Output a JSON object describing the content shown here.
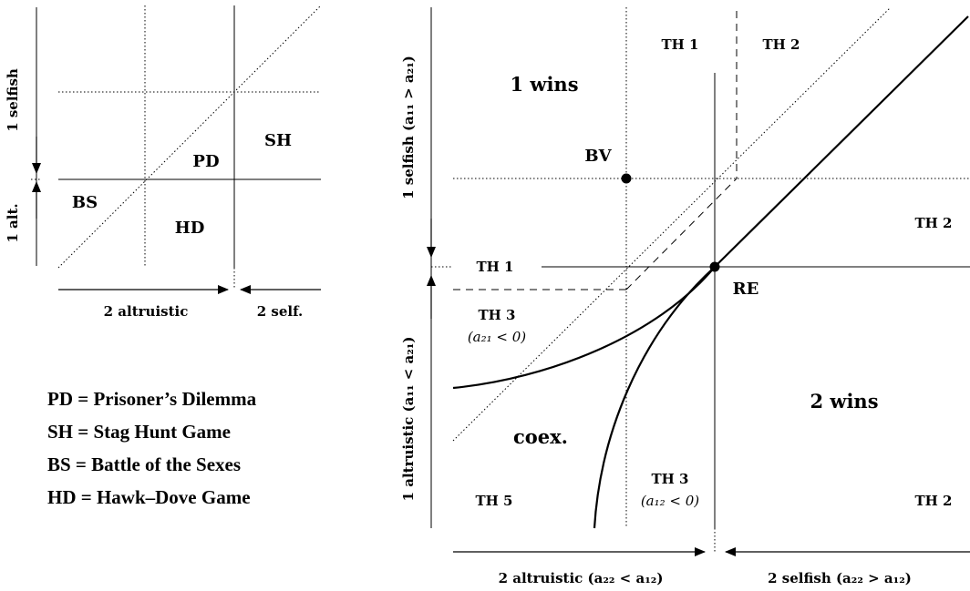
{
  "small_diagram": {
    "axis_left_top": "1 selfish",
    "axis_left_bottom": "1 alt.",
    "axis_bottom_left": "2 altruistic",
    "axis_bottom_right": "2 self.",
    "regions": {
      "pd": "PD",
      "sh": "SH",
      "bs": "BS",
      "hd": "HD"
    }
  },
  "legend": [
    "PD = Prisoner’s Dilemma",
    "SH = Stag Hunt Game",
    "BS = Battle of the Sexes",
    "HD = Hawk–Dove Game"
  ],
  "main_diagram": {
    "axis_left_top": "1 selfish (a₁₁ > a₂₁)",
    "axis_left_bottom": "1 altruistic (a₁₁ < a₂₁)",
    "axis_bottom_left": "2 altruistic (a₂₂ < a₁₂)",
    "axis_bottom_right": "2 selfish (a₂₂ > a₁₂)",
    "regions": {
      "th1_top": "TH 1",
      "th2_top": "TH 2",
      "one_wins": "1 wins",
      "bv": "BV",
      "th2_right": "TH 2",
      "th1_left": "TH 1",
      "re": "RE",
      "th3_left": "TH 3",
      "th3_left_cond": "(a₂₁ < 0)",
      "two_wins": "2 wins",
      "coex": "coex.",
      "th3_bottom": "TH 3",
      "th3_bottom_cond": "(a₁₂ < 0)",
      "th5": "TH 5",
      "th2_bottom": "TH 2"
    }
  }
}
